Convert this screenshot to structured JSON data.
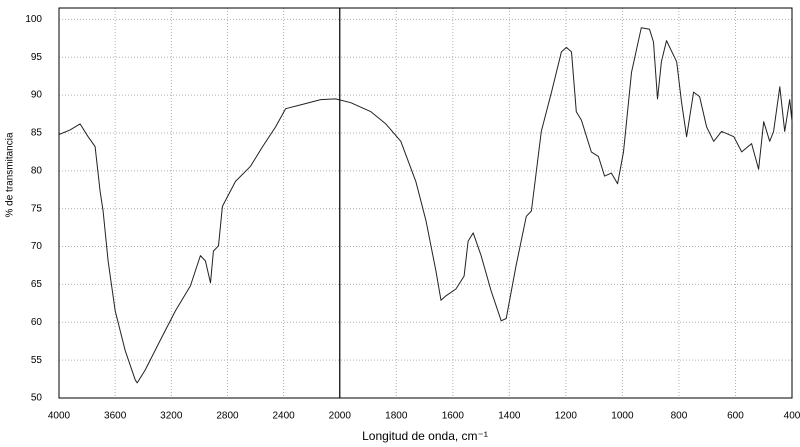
{
  "chart_data": {
    "type": "line",
    "x_label": "Longitud de onda, cm⁻¹",
    "y_label": "% de transmitancia",
    "x_scale_change": 2000,
    "xlim": [
      4000,
      400
    ],
    "xticks": [
      4000,
      3600,
      3200,
      2800,
      2400,
      2000,
      1800,
      1600,
      1400,
      1200,
      1000,
      800,
      600,
      400
    ],
    "ylim": [
      50,
      101.5
    ],
    "yticks": [
      50,
      55,
      60,
      65,
      70,
      75,
      80,
      85,
      90,
      95,
      100
    ],
    "grid": true,
    "series": [
      {
        "color": "#222222",
        "x": [
          4000,
          3921,
          3850,
          3793,
          3743,
          3707,
          3686,
          3650,
          3600,
          3529,
          3457,
          3443,
          3386,
          3279,
          3171,
          3064,
          2993,
          2957,
          2921,
          2900,
          2864,
          2836,
          2743,
          2636,
          2550,
          2457,
          2386,
          2279,
          2136,
          2029,
          1961,
          1890,
          1837,
          1784,
          1731,
          1695,
          1660,
          1642,
          1624,
          1589,
          1560,
          1546,
          1528,
          1500,
          1465,
          1429,
          1411,
          1376,
          1340,
          1322,
          1287,
          1251,
          1216,
          1198,
          1180,
          1163,
          1145,
          1110,
          1085,
          1063,
          1039,
          1017,
          996,
          968,
          933,
          904,
          890,
          876,
          862,
          844,
          808,
          791,
          773,
          748,
          727,
          702,
          677,
          649,
          606,
          578,
          543,
          518,
          500,
          479,
          465,
          443,
          426,
          408,
          400
        ],
        "values": [
          84.8,
          85.4,
          86.2,
          84.5,
          83.2,
          77.3,
          74.7,
          68.1,
          61.5,
          56.3,
          52.4,
          52.0,
          53.7,
          57.6,
          61.5,
          64.8,
          68.8,
          68.1,
          65.2,
          69.4,
          70.1,
          75.3,
          78.6,
          80.6,
          83.2,
          85.8,
          88.2,
          88.7,
          89.4,
          89.5,
          89.0,
          87.8,
          86.2,
          83.9,
          78.6,
          73.4,
          66.8,
          62.9,
          63.5,
          64.4,
          66.1,
          70.7,
          71.8,
          68.8,
          64.2,
          60.2,
          60.5,
          67.5,
          74.0,
          74.7,
          85.2,
          90.4,
          95.7,
          96.3,
          95.7,
          87.8,
          86.7,
          82.5,
          81.9,
          79.3,
          79.7,
          78.3,
          82.5,
          93.0,
          98.9,
          98.7,
          97.0,
          89.5,
          94.4,
          97.2,
          94.4,
          89.1,
          84.5,
          90.4,
          89.8,
          85.8,
          83.9,
          85.2,
          84.5,
          82.5,
          83.6,
          80.2,
          86.5,
          83.9,
          85.2,
          91.1,
          85.2,
          89.4,
          86.5
        ]
      }
    ]
  }
}
